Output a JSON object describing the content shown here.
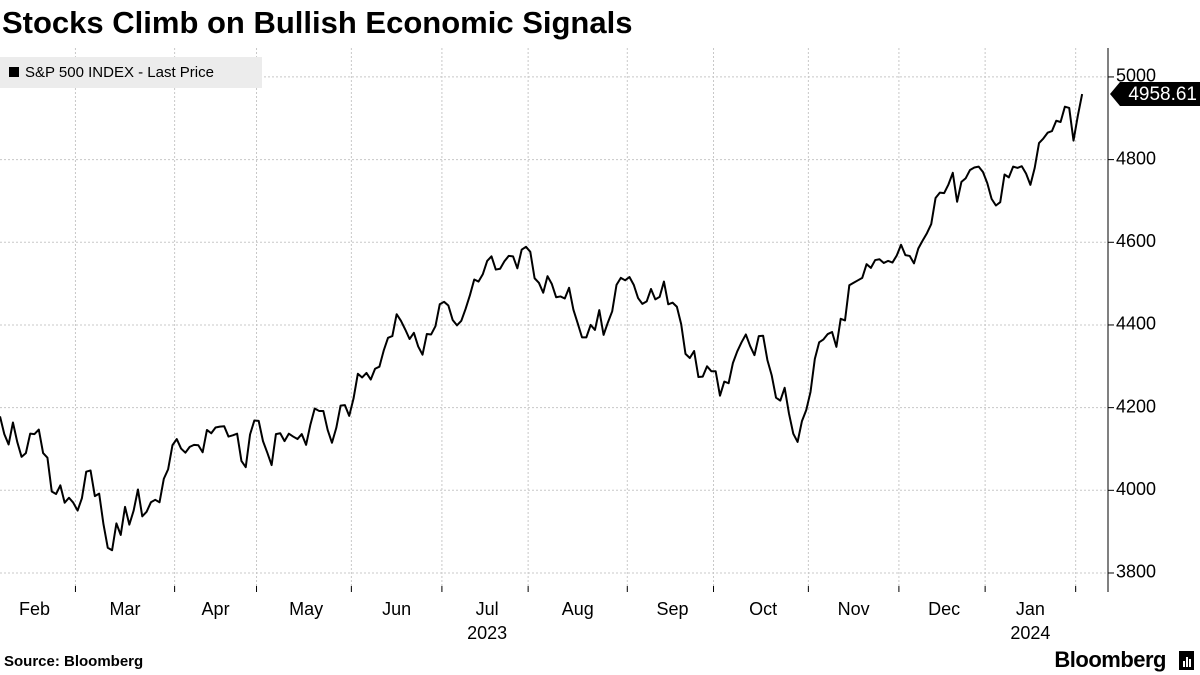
{
  "chart_data": {
    "type": "line",
    "title": "Stocks Climb on Bullish Economic Signals",
    "source": "Source: Bloomberg",
    "brand": "Bloomberg",
    "series": [
      {
        "name": "S&P 500 INDEX - Last Price",
        "color": "#000000",
        "values": [
          4179,
          4136,
          4111,
          4164,
          4117,
          4081,
          4090,
          4137,
          4136,
          4147,
          4090,
          4079,
          3997,
          3991,
          4012,
          3970,
          3982,
          3970,
          3951,
          3981,
          4045,
          4048,
          3986,
          3992,
          3918,
          3861,
          3855,
          3920,
          3892,
          3960,
          3917,
          3951,
          4002,
          3937,
          3948,
          3971,
          3977,
          3971,
          4028,
          4051,
          4109,
          4124,
          4101,
          4091,
          4105,
          4110,
          4109,
          4092,
          4146,
          4138,
          4152,
          4154,
          4155,
          4130,
          4133,
          4137,
          4071,
          4056,
          4135,
          4169,
          4168,
          4119,
          4091,
          4061,
          4136,
          4138,
          4119,
          4137,
          4130,
          4124,
          4136,
          4110,
          4159,
          4198,
          4192,
          4192,
          4146,
          4115,
          4151,
          4205,
          4206,
          4180,
          4222,
          4282,
          4273,
          4284,
          4268,
          4294,
          4299,
          4338,
          4369,
          4373,
          4426,
          4410,
          4389,
          4366,
          4381,
          4348,
          4328,
          4378,
          4377,
          4397,
          4450,
          4456,
          4447,
          4412,
          4399,
          4410,
          4439,
          4472,
          4510,
          4505,
          4523,
          4555,
          4566,
          4534,
          4536,
          4554,
          4567,
          4566,
          4537,
          4582,
          4589,
          4577,
          4513,
          4502,
          4478,
          4518,
          4499,
          4467,
          4469,
          4464,
          4490,
          4437,
          4404,
          4370,
          4370,
          4400,
          4388,
          4436,
          4376,
          4406,
          4433,
          4497,
          4514,
          4508,
          4516,
          4497,
          4465,
          4451,
          4457,
          4487,
          4462,
          4468,
          4505,
          4450,
          4454,
          4444,
          4402,
          4330,
          4320,
          4337,
          4274,
          4275,
          4300,
          4288,
          4288,
          4229,
          4263,
          4259,
          4308,
          4336,
          4358,
          4377,
          4349,
          4327,
          4373,
          4374,
          4315,
          4278,
          4224,
          4217,
          4248,
          4186,
          4137,
          4117,
          4167,
          4194,
          4238,
          4318,
          4358,
          4365,
          4378,
          4383,
          4347,
          4415,
          4411,
          4496,
          4502,
          4508,
          4514,
          4547,
          4538,
          4557,
          4559,
          4550,
          4555,
          4551,
          4568,
          4594,
          4569,
          4567,
          4549,
          4585,
          4604,
          4622,
          4644,
          4707,
          4720,
          4719,
          4740,
          4768,
          4698,
          4746,
          4755,
          4775,
          4781,
          4783,
          4770,
          4743,
          4705,
          4689,
          4697,
          4764,
          4757,
          4783,
          4780,
          4784,
          4766,
          4739,
          4780,
          4840,
          4851,
          4865,
          4869,
          4894,
          4891,
          4928,
          4925,
          4846,
          4906,
          4958.61
        ]
      }
    ],
    "xlim": [
      0,
      257
    ],
    "xticks": [
      {
        "value": 8,
        "label": "Feb"
      },
      {
        "value": 29,
        "label": "Mar"
      },
      {
        "value": 50,
        "label": "Apr"
      },
      {
        "value": 71,
        "label": "May"
      },
      {
        "value": 92,
        "label": "Jun"
      },
      {
        "value": 113,
        "label": "Jul"
      },
      {
        "value": 134,
        "label": "Aug"
      },
      {
        "value": 156,
        "label": "Sep"
      },
      {
        "value": 177,
        "label": "Oct"
      },
      {
        "value": 198,
        "label": "Nov"
      },
      {
        "value": 219,
        "label": "Dec"
      },
      {
        "value": 239,
        "label": "Jan"
      }
    ],
    "xyears": [
      {
        "value": 113,
        "label": "2023"
      },
      {
        "value": 239,
        "label": "2024"
      }
    ],
    "xgrid": [
      17.5,
      40.5,
      59.5,
      81.5,
      102.5,
      122.5,
      145.5,
      165.5,
      187.5,
      208.5,
      228.5,
      249.5
    ],
    "ylim": [
      3754,
      5070
    ],
    "yticks": [
      3800,
      4000,
      4200,
      4400,
      4600,
      4800,
      5000
    ],
    "grid": true,
    "legend": "upper left"
  }
}
